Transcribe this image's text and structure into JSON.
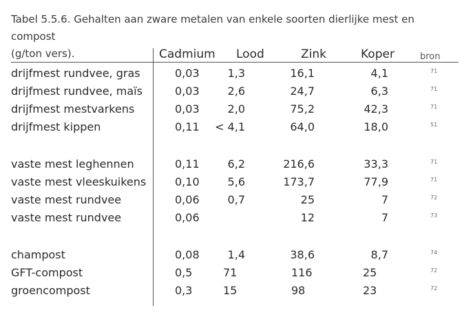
{
  "caption": {
    "line1": "Tabel 5.5.6. Gehalten aan zware metalen van enkele soorten dierlijke mest en compost",
    "line2": "(g/ton vers)."
  },
  "headers": {
    "cadmium": "Cadmium",
    "lood": "Lood",
    "zink": "Zink",
    "koper": "Koper",
    "bron": "bron"
  },
  "rows": [
    {
      "name": "drijfmest rundvee, gras",
      "cd": "0,03",
      "pb": "1,3",
      "zn": "16,1",
      "cu": "4,1",
      "src": "71"
    },
    {
      "name": "drijfmest rundvee, maïs",
      "cd": "0,03",
      "pb": "2,6",
      "zn": "24,7",
      "cu": "6,3",
      "src": "71"
    },
    {
      "name": "drijfmest mestvarkens",
      "cd": "0,03",
      "pb": "2,0",
      "zn": "75,2",
      "cu": "42,3",
      "src": "71"
    },
    {
      "name": "drijfmest kippen",
      "cd": "0,11",
      "pb": "< 4,1",
      "zn": "64,0",
      "cu": "18,0",
      "src": "51"
    },
    {
      "name": "vaste mest leghennen",
      "cd": "0,11",
      "pb": "6,2",
      "zn": "216,6",
      "cu": "33,3",
      "src": "71"
    },
    {
      "name": "vaste mest vleeskuikens",
      "cd": "0,10",
      "pb": "5,6",
      "zn": "173,7",
      "cu": "77,9",
      "src": "71"
    },
    {
      "name": "vaste mest rundvee",
      "cd": "0,06",
      "pb": "0,7",
      "zn": "25",
      "cu": "7",
      "src": "72"
    },
    {
      "name": "vaste mest rundvee",
      "cd": "0,06",
      "pb": "",
      "zn": "12",
      "cu": "7",
      "src": "73"
    },
    {
      "name": "champost",
      "cd": "0,08",
      "pb": "1,4",
      "zn": "38,6",
      "cu": "8,7",
      "src": "74"
    },
    {
      "name": "GFT-compost",
      "cd": "0,5",
      "pb": "71",
      "zn": "116",
      "cu": "25",
      "src": "72"
    },
    {
      "name": "groencompost",
      "cd": "0,3",
      "pb": "15",
      "zn": "98",
      "cu": "23",
      "src": "72"
    }
  ]
}
